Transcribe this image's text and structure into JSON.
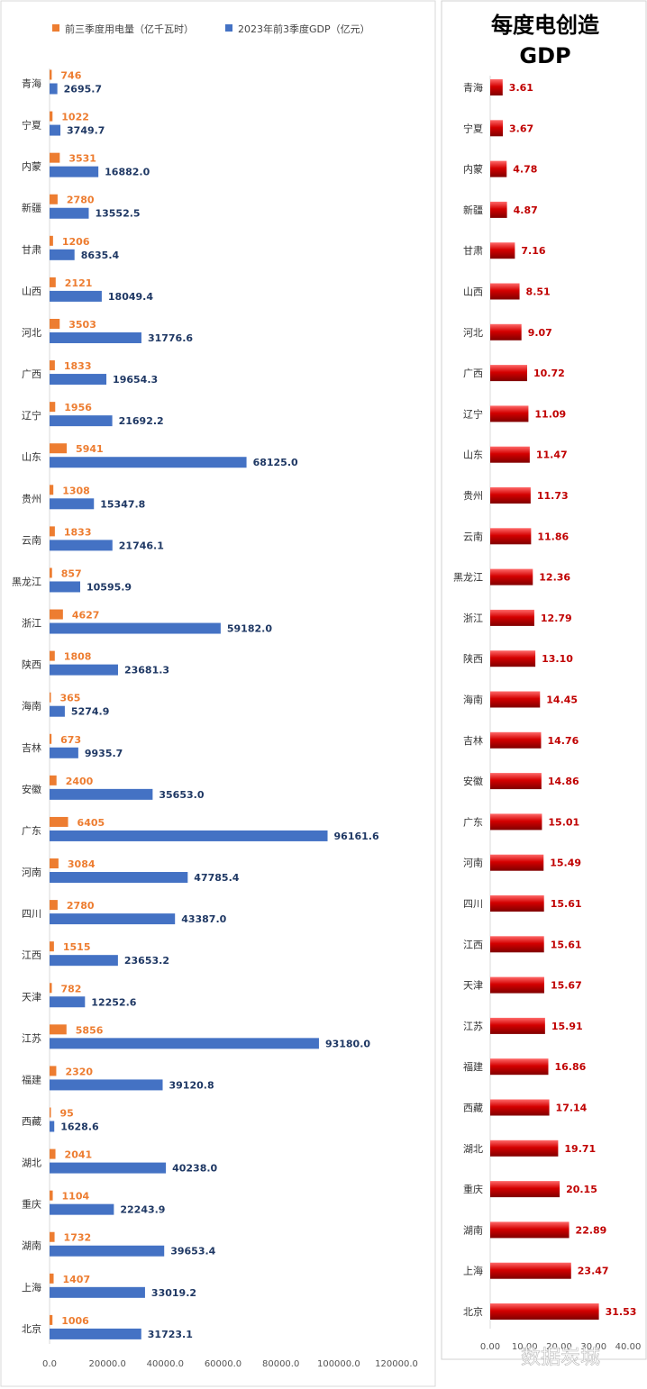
{
  "chart_data": [
    {
      "type": "bar",
      "orientation": "horizontal",
      "categories": [
        "青海",
        "宁夏",
        "内蒙",
        "新疆",
        "甘肃",
        "山西",
        "河北",
        "广西",
        "辽宁",
        "山东",
        "贵州",
        "云南",
        "黑龙江",
        "浙江",
        "陕西",
        "海南",
        "吉林",
        "安徽",
        "广东",
        "河南",
        "四川",
        "江西",
        "天津",
        "江苏",
        "福建",
        "西藏",
        "湖北",
        "重庆",
        "湖南",
        "上海",
        "北京"
      ],
      "series": [
        {
          "name": "前三季度用电量（亿千瓦时）",
          "color": "#ED7D31",
          "values": [
            746,
            1022,
            3531,
            2780,
            1206,
            2121,
            3503,
            1833,
            1956,
            5941,
            1308,
            1833,
            857,
            4627,
            1808,
            365,
            673,
            2400,
            6405,
            3084,
            2780,
            1515,
            782,
            5856,
            2320,
            95,
            2041,
            1104,
            1732,
            1407,
            1006
          ],
          "labels": [
            "746",
            "1022",
            "3531",
            "2780",
            "1206",
            "2121",
            "3503",
            "1833",
            "1956",
            "5941",
            "1308",
            "1833",
            "857",
            "4627",
            "1808",
            "365",
            "673",
            "2400",
            "6405",
            "3084",
            "2780",
            "1515",
            "782",
            "5856",
            "2320",
            "95",
            "2041",
            "1104",
            "1732",
            "1407",
            "1006"
          ]
        },
        {
          "name": "2023年前3季度GDP（亿元）",
          "color": "#4472C4",
          "values": [
            2695.7,
            3749.7,
            16882.0,
            13552.5,
            8635.4,
            18049.4,
            31776.6,
            19654.3,
            21692.2,
            68125.0,
            15347.8,
            21746.1,
            10595.9,
            59182.0,
            23681.3,
            5274.9,
            9935.7,
            35653.0,
            96161.6,
            47785.4,
            43387.0,
            23653.2,
            12252.6,
            93180.0,
            39120.8,
            1628.6,
            40238.0,
            22243.9,
            39653.4,
            33019.2,
            31723.1
          ],
          "labels": [
            "2695.7",
            "3749.7",
            "16882.0",
            "13552.5",
            "8635.4",
            "18049.4",
            "31776.6",
            "19654.3",
            "21692.2",
            "68125.0",
            "15347.8",
            "21746.1",
            "10595.9",
            "59182.0",
            "23681.3",
            "5274.9",
            "9935.7",
            "35653.0",
            "96161.6",
            "47785.4",
            "43387.0",
            "23653.2",
            "12252.6",
            "93180.0",
            "39120.8",
            "1628.6",
            "40238.0",
            "22243.9",
            "39653.4",
            "33019.2",
            "31723.1"
          ]
        }
      ],
      "xlim": [
        0,
        120000
      ],
      "xticks": [
        "0.0",
        "20000.0",
        "40000.0",
        "60000.0",
        "80000.0",
        "100000.0",
        "120000.0"
      ],
      "legend_position": "top"
    },
    {
      "type": "bar",
      "orientation": "horizontal",
      "title_line1": "每度电创造",
      "title_line2": "GDP",
      "categories": [
        "青海",
        "宁夏",
        "内蒙",
        "新疆",
        "甘肃",
        "山西",
        "河北",
        "广西",
        "辽宁",
        "山东",
        "贵州",
        "云南",
        "黑龙江",
        "浙江",
        "陕西",
        "海南",
        "吉林",
        "安徽",
        "广东",
        "河南",
        "四川",
        "江西",
        "天津",
        "江苏",
        "福建",
        "西藏",
        "湖北",
        "重庆",
        "湖南",
        "上海",
        "北京"
      ],
      "series": [
        {
          "color": "#C00000",
          "values": [
            3.61,
            3.67,
            4.78,
            4.87,
            7.16,
            8.51,
            9.07,
            10.72,
            11.09,
            11.47,
            11.73,
            11.86,
            12.36,
            12.79,
            13.1,
            14.45,
            14.76,
            14.86,
            15.01,
            15.49,
            15.61,
            15.61,
            15.67,
            15.91,
            16.86,
            17.14,
            19.71,
            20.15,
            22.89,
            23.47,
            31.53
          ],
          "labels": [
            "3.61",
            "3.67",
            "4.78",
            "4.87",
            "7.16",
            "8.51",
            "9.07",
            "10.72",
            "11.09",
            "11.47",
            "11.73",
            "11.86",
            "12.36",
            "12.79",
            "13.10",
            "14.45",
            "14.76",
            "14.86",
            "15.01",
            "15.49",
            "15.61",
            "15.61",
            "15.67",
            "15.91",
            "16.86",
            "17.14",
            "19.71",
            "20.15",
            "22.89",
            "23.47",
            "31.53"
          ]
        }
      ],
      "xlim": [
        0,
        40
      ],
      "xticks": [
        "0.00",
        "10.00",
        "20.00",
        "30.00",
        "40.00"
      ]
    }
  ],
  "watermark": "数据炭城"
}
